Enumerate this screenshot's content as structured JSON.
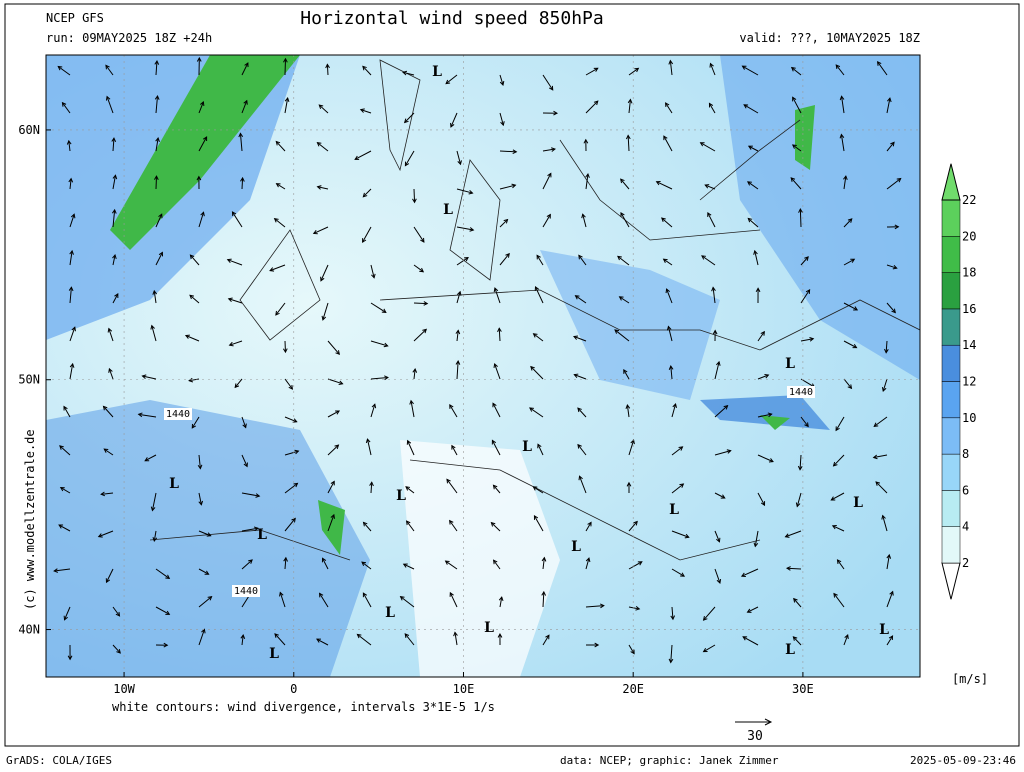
{
  "header": {
    "model": "NCEP GFS",
    "title": "Horizontal wind speed 850hPa",
    "run": "run: 09MAY2025 18Z +24h",
    "valid": "valid: ???, 10MAY2025 18Z"
  },
  "map": {
    "lon_lim": [
      -14.6,
      36.9
    ],
    "lat_lim": [
      63,
      38.1
    ],
    "lon_ticks": [
      {
        "value": -10,
        "label": "10W"
      },
      0,
      {
        "value": 10,
        "label": "10E"
      },
      {
        "value": 20,
        "label": "20E"
      },
      {
        "value": 30,
        "label": "30E"
      }
    ],
    "lat_ticks": [
      {
        "value": 60,
        "label": "60N"
      },
      {
        "value": 50,
        "label": "50N"
      },
      {
        "value": 40,
        "label": "40N"
      }
    ],
    "labels": [
      "L",
      "L",
      "L",
      "L",
      "L",
      "L",
      "L",
      "L",
      "L",
      "L",
      "L",
      "L",
      "L",
      "L",
      "L",
      "1440",
      "1440",
      "1440"
    ]
  },
  "colorbar": {
    "ticks": [
      2,
      4,
      6,
      8,
      10,
      12,
      14,
      16,
      18,
      20,
      22
    ],
    "colors": [
      "#ffffff",
      "#e2f8f8",
      "#b8ecf2",
      "#98d6f8",
      "#7cbcf6",
      "#5aa4f0",
      "#4a8ede",
      "#3a9a8c",
      "#2aa040",
      "#40bc48",
      "#5cd05c",
      "#70dc6c"
    ],
    "unit": "[m/s]"
  },
  "footer": {
    "note": "white contours: wind divergence, intervals 3*1E-5 1/s",
    "vector_scale": "30",
    "grads": "GrADS: COLA/IGES",
    "credit": "data: NCEP; graphic: Janek Zimmer",
    "timestamp": "2025-05-09-23:46",
    "site": "(c) www.modellzentrale.de"
  }
}
